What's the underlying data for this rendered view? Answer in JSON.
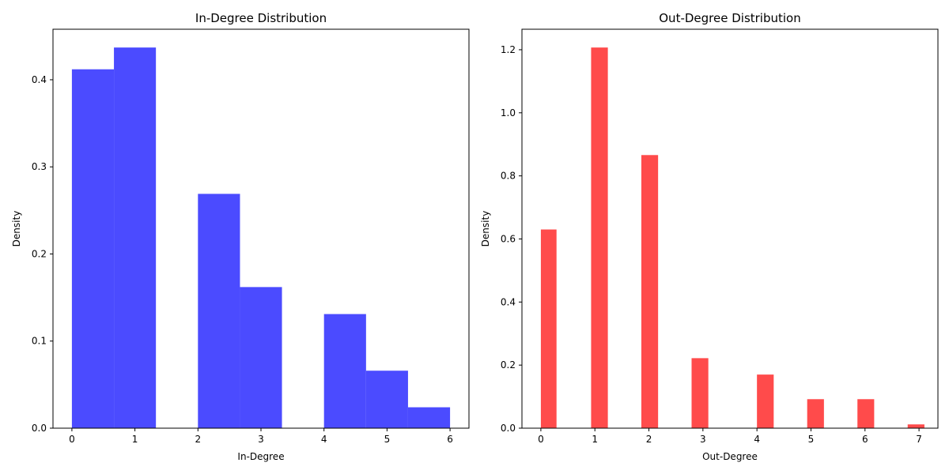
{
  "chart_data": [
    {
      "type": "bar",
      "title": "In-Degree Distribution",
      "xlabel": "In-Degree",
      "ylabel": "Density",
      "color": "#4b4bff",
      "xlim": [
        -0.3,
        6.3
      ],
      "ylim": [
        0,
        0.458
      ],
      "xticks": [
        0,
        1,
        2,
        3,
        4,
        5,
        6
      ],
      "yticks": [
        0.0,
        0.1,
        0.2,
        0.3,
        0.4
      ],
      "ytick_labels": [
        "0.0",
        "0.1",
        "0.2",
        "0.3",
        "0.4"
      ],
      "grid": false,
      "bins": [
        {
          "x0": 0.0,
          "x1": 0.667,
          "value": 0.412
        },
        {
          "x0": 0.667,
          "x1": 1.333,
          "value": 0.437
        },
        {
          "x0": 1.333,
          "x1": 2.0,
          "value": 0.0
        },
        {
          "x0": 2.0,
          "x1": 2.667,
          "value": 0.269
        },
        {
          "x0": 2.667,
          "x1": 3.333,
          "value": 0.162
        },
        {
          "x0": 3.333,
          "x1": 4.0,
          "value": 0.0
        },
        {
          "x0": 4.0,
          "x1": 4.667,
          "value": 0.131
        },
        {
          "x0": 4.667,
          "x1": 5.333,
          "value": 0.066
        },
        {
          "x0": 5.333,
          "x1": 6.0,
          "value": 0.024
        }
      ]
    },
    {
      "type": "bar",
      "title": "Out-Degree Distribution",
      "xlabel": "Out-Degree",
      "ylabel": "Density",
      "color": "#ff4b4b",
      "xlim": [
        -0.35,
        7.35
      ],
      "ylim": [
        0,
        1.265
      ],
      "xticks": [
        0,
        1,
        2,
        3,
        4,
        5,
        6,
        7
      ],
      "yticks": [
        0.0,
        0.2,
        0.4,
        0.6,
        0.8,
        1.0,
        1.2
      ],
      "ytick_labels": [
        "0.0",
        "0.2",
        "0.4",
        "0.6",
        "0.8",
        "1.0",
        "1.2"
      ],
      "grid": false,
      "bins": [
        {
          "x0": 0.0,
          "x1": 0.29,
          "value": 0.63
        },
        {
          "x0": 0.93,
          "x1": 1.24,
          "value": 1.207
        },
        {
          "x0": 1.86,
          "x1": 2.17,
          "value": 0.866
        },
        {
          "x0": 2.79,
          "x1": 3.1,
          "value": 0.222
        },
        {
          "x0": 4.0,
          "x1": 4.31,
          "value": 0.17
        },
        {
          "x0": 4.93,
          "x1": 5.24,
          "value": 0.092
        },
        {
          "x0": 5.86,
          "x1": 6.17,
          "value": 0.092
        },
        {
          "x0": 6.79,
          "x1": 7.1,
          "value": 0.012
        }
      ]
    }
  ]
}
